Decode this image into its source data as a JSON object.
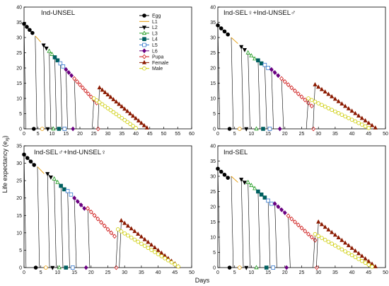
{
  "figure": {
    "ylabel": "Life expectancy (e",
    "ylabel_sub": "xj",
    "ylabel_close": ")",
    "xlabel": "Days"
  },
  "legend": {
    "placement": "inside top panel 1, right side",
    "entries": [
      {
        "name": "Egg",
        "color": "#000000",
        "marker": "circle",
        "fill": "#000000"
      },
      {
        "name": "L1",
        "color": "#e69a00",
        "marker": "none",
        "fill": "none"
      },
      {
        "name": "L2",
        "color": "#000000",
        "marker": "triangle-down",
        "fill": "#000000"
      },
      {
        "name": "L3",
        "color": "#1a9a1a",
        "marker": "triangle",
        "fill": "none"
      },
      {
        "name": "L4",
        "color": "#006060",
        "marker": "square",
        "fill": "#006060"
      },
      {
        "name": "L5",
        "color": "#3377cc",
        "marker": "square",
        "fill": "none"
      },
      {
        "name": "L6",
        "color": "#6a0080",
        "marker": "diamond",
        "fill": "#6a0080"
      },
      {
        "name": "Pupa",
        "color": "#cc1111",
        "marker": "diamond",
        "fill": "none"
      },
      {
        "name": "Female",
        "color": "#8b1a00",
        "marker": "triangle",
        "fill": "#8b1a00"
      },
      {
        "name": "Male",
        "color": "#cccc00",
        "marker": "circle",
        "fill": "none"
      }
    ]
  },
  "chart_data": [
    {
      "type": "line",
      "title": "Ind-UNSEL",
      "xlim": [
        0,
        60
      ],
      "xticks": [
        0,
        5,
        10,
        15,
        20,
        25,
        30,
        35,
        40,
        45,
        50,
        55,
        60
      ],
      "ylim": [
        0,
        40
      ],
      "yticks": [
        0,
        5,
        10,
        15,
        20,
        25,
        30,
        35,
        40
      ],
      "grid": false,
      "stages": [
        {
          "name": "Egg",
          "x0": 0,
          "n": 4,
          "y0": 34.5
        },
        {
          "name": "L1",
          "x0": 4,
          "n": 3,
          "y0": 30.5
        },
        {
          "name": "L2",
          "x0": 7,
          "n": 2,
          "y0": 27.5
        },
        {
          "name": "L3",
          "x0": 9,
          "n": 2,
          "y0": 25.5
        },
        {
          "name": "L4",
          "x0": 11,
          "n": 2,
          "y0": 23.5
        },
        {
          "name": "L5",
          "x0": 13,
          "n": 2,
          "y0": 21.5
        },
        {
          "name": "L6",
          "x0": 15,
          "n": 3,
          "y0": 19.5
        },
        {
          "name": "Pupa",
          "x0": 18,
          "n": 9,
          "y0": 16.5
        },
        {
          "name": "Female",
          "x0": 27,
          "n": 17,
          "y0": 13.5
        },
        {
          "name": "Male",
          "x0": 25,
          "n": 15,
          "y0": 10.0
        }
      ],
      "female_end": 44,
      "male_end": 40
    },
    {
      "type": "line",
      "title": "Ind-SEL♀+Ind-UNSEL♂",
      "xlim": [
        0,
        50
      ],
      "xticks": [
        0,
        5,
        10,
        15,
        20,
        25,
        30,
        35,
        40,
        45,
        50
      ],
      "ylim": [
        0,
        40
      ],
      "yticks": [
        0,
        5,
        10,
        15,
        20,
        25,
        30,
        35,
        40
      ],
      "grid": false,
      "stages": [
        {
          "name": "Egg",
          "x0": 0,
          "n": 4,
          "y0": 34.0
        },
        {
          "name": "L1",
          "x0": 4,
          "n": 3,
          "y0": 30.0
        },
        {
          "name": "L2",
          "x0": 7,
          "n": 2,
          "y0": 27.0
        },
        {
          "name": "L3",
          "x0": 9,
          "n": 3,
          "y0": 25.0
        },
        {
          "name": "L4",
          "x0": 12,
          "n": 2,
          "y0": 22.5
        },
        {
          "name": "L5",
          "x0": 14,
          "n": 2,
          "y0": 21.0
        },
        {
          "name": "L6",
          "x0": 16,
          "n": 3,
          "y0": 19.5
        },
        {
          "name": "Pupa",
          "x0": 19,
          "n": 10,
          "y0": 16.5
        },
        {
          "name": "Female",
          "x0": 29,
          "n": 18,
          "y0": 14.5
        },
        {
          "name": "Male",
          "x0": 27,
          "n": 18,
          "y0": 10.0
        }
      ],
      "female_end": 47,
      "male_end": 45
    },
    {
      "type": "line",
      "title": "Ind-SEL♂+Ind-UNSEL♀",
      "xlim": [
        0,
        50
      ],
      "xticks": [
        0,
        5,
        10,
        15,
        20,
        25,
        30,
        35,
        40,
        45,
        50
      ],
      "ylim": [
        0,
        35
      ],
      "yticks": [
        0,
        5,
        10,
        15,
        20,
        25,
        30,
        35
      ],
      "grid": false,
      "stages": [
        {
          "name": "Egg",
          "x0": 0,
          "n": 4,
          "y0": 32.5
        },
        {
          "name": "L1",
          "x0": 4,
          "n": 3,
          "y0": 29.0
        },
        {
          "name": "L2",
          "x0": 7,
          "n": 2,
          "y0": 27.0
        },
        {
          "name": "L3",
          "x0": 9,
          "n": 2,
          "y0": 25.5
        },
        {
          "name": "L4",
          "x0": 11,
          "n": 2,
          "y0": 23.5
        },
        {
          "name": "L5",
          "x0": 13,
          "n": 2,
          "y0": 22.0
        },
        {
          "name": "L6",
          "x0": 15,
          "n": 4,
          "y0": 20.0
        },
        {
          "name": "Pupa",
          "x0": 19,
          "n": 9,
          "y0": 17.0
        },
        {
          "name": "Female",
          "x0": 29,
          "n": 17,
          "y0": 13.5
        },
        {
          "name": "Male",
          "x0": 28,
          "n": 18,
          "y0": 11.0
        }
      ],
      "female_end": 46,
      "male_end": 46
    },
    {
      "type": "line",
      "title": "Ind-SEL",
      "xlim": [
        0,
        50
      ],
      "xticks": [
        0,
        5,
        10,
        15,
        20,
        25,
        30,
        35,
        40,
        45,
        50
      ],
      "ylim": [
        0,
        40
      ],
      "yticks": [
        0,
        5,
        10,
        15,
        20,
        25,
        30,
        35,
        40
      ],
      "grid": false,
      "stages": [
        {
          "name": "Egg",
          "x0": 0,
          "n": 4,
          "y0": 32.5
        },
        {
          "name": "L1",
          "x0": 4,
          "n": 3,
          "y0": 30.0
        },
        {
          "name": "L2",
          "x0": 7,
          "n": 2,
          "y0": 29.0
        },
        {
          "name": "L3",
          "x0": 9,
          "n": 3,
          "y0": 28.0
        },
        {
          "name": "L4",
          "x0": 12,
          "n": 3,
          "y0": 25.0
        },
        {
          "name": "L5",
          "x0": 15,
          "n": 2,
          "y0": 22.0
        },
        {
          "name": "L6",
          "x0": 17,
          "n": 4,
          "y0": 21.0
        },
        {
          "name": "Pupa",
          "x0": 21,
          "n": 9,
          "y0": 17.0
        },
        {
          "name": "Female",
          "x0": 30,
          "n": 17,
          "y0": 15.0
        },
        {
          "name": "Male",
          "x0": 29,
          "n": 17,
          "y0": 11.0
        }
      ],
      "female_end": 47,
      "male_end": 46
    }
  ]
}
